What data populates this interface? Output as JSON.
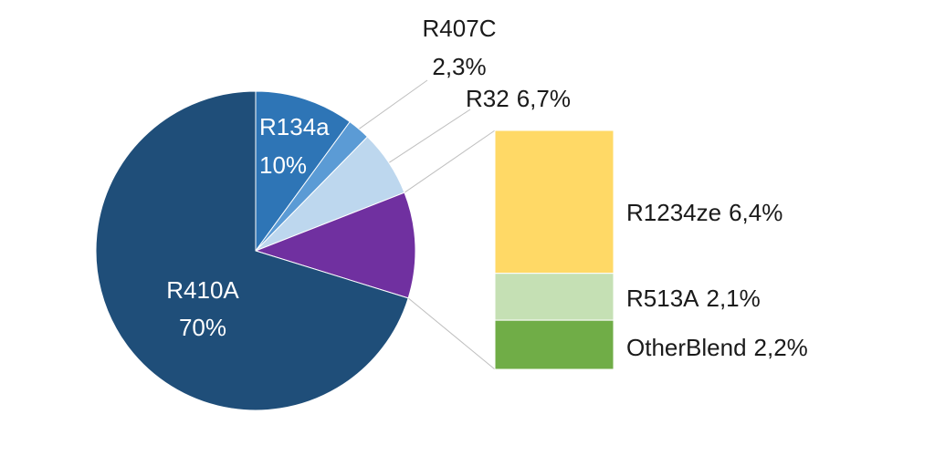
{
  "chart_data": {
    "type": "bar-of-pie",
    "title": "",
    "pie": [
      {
        "name": "R410A",
        "value_label": "70%",
        "value": 70,
        "color": "#1F4E79"
      },
      {
        "name": "R134a",
        "value_label": "10%",
        "value": 10,
        "color": "#2E75B6"
      },
      {
        "name": "R407C",
        "value_label": "2,3%",
        "value": 2.3,
        "color": "#5B9BD5"
      },
      {
        "name": "R32",
        "value_label": "6,7%",
        "value": 6.7,
        "color": "#BDD7EE"
      }
    ],
    "bar_group": {
      "value": 10.7,
      "color": "#7030A0",
      "items": [
        {
          "name": "R1234ze",
          "value_label": "6,4%",
          "value": 6.4,
          "color": "#FFD966"
        },
        {
          "name": "R513A",
          "value_label": "2,1%",
          "value": 2.1,
          "color": "#C5E0B4"
        },
        {
          "name": "OtherBlend",
          "value_label": "2,2%",
          "value": 2.2,
          "color": "#70AD47"
        }
      ]
    }
  }
}
